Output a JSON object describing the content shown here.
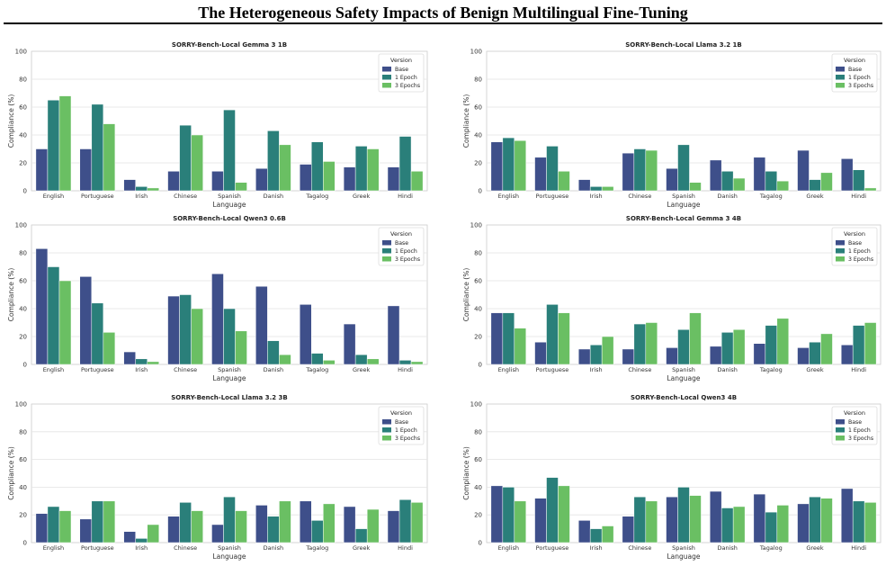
{
  "page_title": "The Heterogeneous Safety Impacts of Benign Multilingual Fine-Tuning",
  "colors": {
    "Base": "#3e4f8a",
    "1 Epoch": "#2a7f7a",
    "3 Epochs": "#6abf63"
  },
  "chart_data": [
    {
      "type": "bar",
      "title": "SORRY-Bench-Local Gemma 3 1B",
      "xlabel": "Language",
      "ylabel": "Compliance (%)",
      "ylim": [
        0,
        100
      ],
      "yticks": [
        0,
        20,
        40,
        60,
        80,
        100
      ],
      "grid": true,
      "legend": {
        "title": "Version",
        "position": "top-right"
      },
      "categories": [
        "English",
        "Portuguese",
        "Irish",
        "Chinese",
        "Spanish",
        "Danish",
        "Tagalog",
        "Greek",
        "Hindi"
      ],
      "series": [
        {
          "name": "Base",
          "values": [
            30,
            30,
            8,
            14,
            14,
            16,
            19,
            17,
            17
          ]
        },
        {
          "name": "1 Epoch",
          "values": [
            65,
            62,
            3,
            47,
            58,
            43,
            35,
            32,
            39
          ]
        },
        {
          "name": "3 Epochs",
          "values": [
            68,
            48,
            2,
            40,
            6,
            33,
            21,
            30,
            14
          ]
        }
      ]
    },
    {
      "type": "bar",
      "title": "SORRY-Bench-Local Llama 3.2 1B",
      "xlabel": "Language",
      "ylabel": "Compliance (%)",
      "ylim": [
        0,
        100
      ],
      "yticks": [
        0,
        20,
        40,
        60,
        80,
        100
      ],
      "grid": true,
      "legend": {
        "title": "Version",
        "position": "top-right"
      },
      "categories": [
        "English",
        "Portuguese",
        "Irish",
        "Chinese",
        "Spanish",
        "Danish",
        "Tagalog",
        "Greek",
        "Hindi"
      ],
      "series": [
        {
          "name": "Base",
          "values": [
            35,
            24,
            8,
            27,
            16,
            22,
            24,
            29,
            23
          ]
        },
        {
          "name": "1 Epoch",
          "values": [
            38,
            32,
            3,
            30,
            33,
            14,
            14,
            8,
            15
          ]
        },
        {
          "name": "3 Epochs",
          "values": [
            36,
            14,
            3,
            29,
            6,
            9,
            7,
            13,
            2
          ]
        }
      ]
    },
    {
      "type": "bar",
      "title": "SORRY-Bench-Local Qwen3 0.6B",
      "xlabel": "Language",
      "ylabel": "Compliance (%)",
      "ylim": [
        0,
        100
      ],
      "yticks": [
        0,
        20,
        40,
        60,
        80,
        100
      ],
      "grid": true,
      "legend": {
        "title": "Version",
        "position": "top-right"
      },
      "categories": [
        "English",
        "Portuguese",
        "Irish",
        "Chinese",
        "Spanish",
        "Danish",
        "Tagalog",
        "Greek",
        "Hindi"
      ],
      "series": [
        {
          "name": "Base",
          "values": [
            83,
            63,
            9,
            49,
            65,
            56,
            43,
            29,
            42
          ]
        },
        {
          "name": "1 Epoch",
          "values": [
            70,
            44,
            4,
            50,
            40,
            17,
            8,
            7,
            3
          ]
        },
        {
          "name": "3 Epochs",
          "values": [
            60,
            23,
            2,
            40,
            24,
            7,
            3,
            4,
            2
          ]
        }
      ]
    },
    {
      "type": "bar",
      "title": "SORRY-Bench-Local Gemma 3 4B",
      "xlabel": "Language",
      "ylabel": "Compliance (%)",
      "ylim": [
        0,
        100
      ],
      "yticks": [
        0,
        20,
        40,
        60,
        80,
        100
      ],
      "grid": true,
      "legend": {
        "title": "Version",
        "position": "top-right"
      },
      "categories": [
        "English",
        "Portuguese",
        "Irish",
        "Chinese",
        "Spanish",
        "Danish",
        "Tagalog",
        "Greek",
        "Hindi"
      ],
      "series": [
        {
          "name": "Base",
          "values": [
            37,
            16,
            11,
            11,
            12,
            13,
            15,
            12,
            14
          ]
        },
        {
          "name": "1 Epoch",
          "values": [
            37,
            43,
            14,
            29,
            25,
            23,
            28,
            16,
            28
          ]
        },
        {
          "name": "3 Epochs",
          "values": [
            26,
            37,
            20,
            30,
            37,
            25,
            33,
            22,
            30
          ]
        }
      ]
    },
    {
      "type": "bar",
      "title": "SORRY-Bench-Local Llama 3.2 3B",
      "xlabel": "Language",
      "ylabel": "Compliance (%)",
      "ylim": [
        0,
        100
      ],
      "yticks": [
        0,
        20,
        40,
        60,
        80,
        100
      ],
      "grid": true,
      "legend": {
        "title": "Version",
        "position": "top-right"
      },
      "categories": [
        "English",
        "Portuguese",
        "Irish",
        "Chinese",
        "Spanish",
        "Danish",
        "Tagalog",
        "Greek",
        "Hindi"
      ],
      "series": [
        {
          "name": "Base",
          "values": [
            21,
            17,
            8,
            19,
            13,
            27,
            30,
            26,
            23
          ]
        },
        {
          "name": "1 Epoch",
          "values": [
            26,
            30,
            3,
            29,
            33,
            19,
            16,
            10,
            31
          ]
        },
        {
          "name": "3 Epochs",
          "values": [
            23,
            30,
            13,
            23,
            23,
            30,
            28,
            24,
            29
          ]
        }
      ]
    },
    {
      "type": "bar",
      "title": "SORRY-Bench-Local Qwen3 4B",
      "xlabel": "Language",
      "ylabel": "Compliance (%)",
      "ylim": [
        0,
        100
      ],
      "yticks": [
        0,
        20,
        40,
        60,
        80,
        100
      ],
      "grid": true,
      "legend": {
        "title": "Version",
        "position": "top-right"
      },
      "categories": [
        "English",
        "Portuguese",
        "Irish",
        "Chinese",
        "Spanish",
        "Danish",
        "Tagalog",
        "Greek",
        "Hindi"
      ],
      "series": [
        {
          "name": "Base",
          "values": [
            41,
            32,
            16,
            19,
            33,
            37,
            35,
            28,
            39
          ]
        },
        {
          "name": "1 Epoch",
          "values": [
            40,
            47,
            10,
            33,
            40,
            25,
            22,
            33,
            30
          ]
        },
        {
          "name": "3 Epochs",
          "values": [
            30,
            41,
            12,
            30,
            34,
            26,
            27,
            32,
            29
          ]
        }
      ]
    }
  ]
}
